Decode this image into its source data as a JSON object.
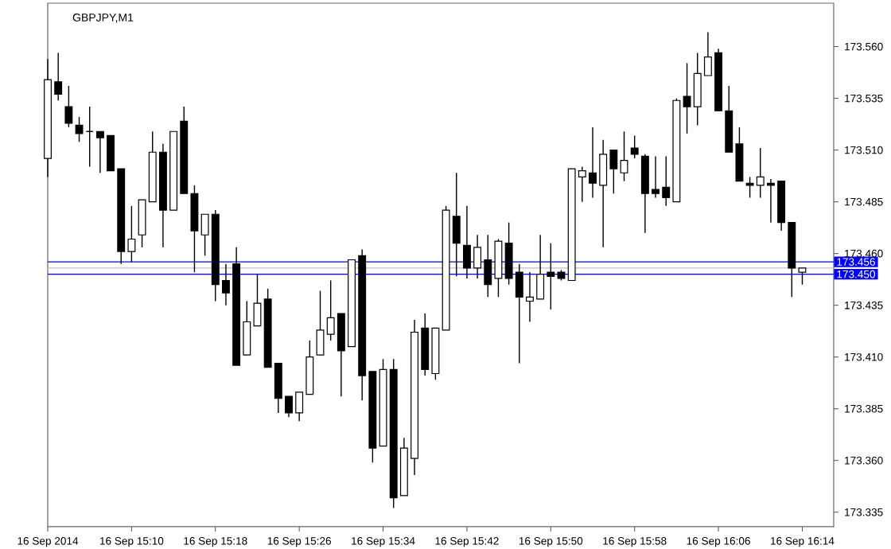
{
  "chart_data": {
    "type": "candlestick",
    "title": "GBPJPY,M1",
    "x": [
      "2014-09-16T15:02",
      "2014-09-16T15:03",
      "2014-09-16T15:04",
      "2014-09-16T15:05",
      "2014-09-16T15:06",
      "2014-09-16T15:07",
      "2014-09-16T15:08",
      "2014-09-16T15:09",
      "2014-09-16T15:10",
      "2014-09-16T15:11",
      "2014-09-16T15:12",
      "2014-09-16T15:13",
      "2014-09-16T15:14",
      "2014-09-16T15:15",
      "2014-09-16T15:16",
      "2014-09-16T15:17",
      "2014-09-16T15:18",
      "2014-09-16T15:19",
      "2014-09-16T15:20",
      "2014-09-16T15:21",
      "2014-09-16T15:22",
      "2014-09-16T15:23",
      "2014-09-16T15:24",
      "2014-09-16T15:25",
      "2014-09-16T15:26",
      "2014-09-16T15:27",
      "2014-09-16T15:28",
      "2014-09-16T15:29",
      "2014-09-16T15:30",
      "2014-09-16T15:31",
      "2014-09-16T15:32",
      "2014-09-16T15:33",
      "2014-09-16T15:34",
      "2014-09-16T15:35",
      "2014-09-16T15:36",
      "2014-09-16T15:37",
      "2014-09-16T15:38",
      "2014-09-16T15:39",
      "2014-09-16T15:40",
      "2014-09-16T15:41",
      "2014-09-16T15:42",
      "2014-09-16T15:43",
      "2014-09-16T15:44",
      "2014-09-16T15:45",
      "2014-09-16T15:46",
      "2014-09-16T15:47",
      "2014-09-16T15:48",
      "2014-09-16T15:49",
      "2014-09-16T15:50",
      "2014-09-16T15:51",
      "2014-09-16T15:52",
      "2014-09-16T15:53",
      "2014-09-16T15:54",
      "2014-09-16T15:55",
      "2014-09-16T15:56",
      "2014-09-16T15:57",
      "2014-09-16T15:58",
      "2014-09-16T15:59",
      "2014-09-16T16:00",
      "2014-09-16T16:01",
      "2014-09-16T16:02",
      "2014-09-16T16:03",
      "2014-09-16T16:04",
      "2014-09-16T16:05",
      "2014-09-16T16:06",
      "2014-09-16T16:07",
      "2014-09-16T16:08",
      "2014-09-16T16:09",
      "2014-09-16T16:10",
      "2014-09-16T16:11",
      "2014-09-16T16:12",
      "2014-09-16T16:13",
      "2014-09-16T16:14"
    ],
    "xlim": [
      "2014-09-16T15:02",
      "2014-09-16T16:17"
    ],
    "xticks": [
      {
        "value": "2014-09-16T15:02",
        "label": "16 Sep 2014"
      },
      {
        "value": "2014-09-16T15:10",
        "label": "16 Sep 15:10"
      },
      {
        "value": "2014-09-16T15:18",
        "label": "16 Sep 15:18"
      },
      {
        "value": "2014-09-16T15:26",
        "label": "16 Sep 15:26"
      },
      {
        "value": "2014-09-16T15:34",
        "label": "16 Sep 15:34"
      },
      {
        "value": "2014-09-16T15:42",
        "label": "16 Sep 15:42"
      },
      {
        "value": "2014-09-16T15:50",
        "label": "16 Sep 15:50"
      },
      {
        "value": "2014-09-16T15:58",
        "label": "16 Sep 15:58"
      },
      {
        "value": "2014-09-16T16:06",
        "label": "16 Sep 16:06"
      },
      {
        "value": "2014-09-16T16:14",
        "label": "16 Sep 16:14"
      }
    ],
    "ohlc": [
      [
        173.506,
        173.554,
        173.497,
        173.544
      ],
      [
        173.543,
        173.557,
        173.534,
        173.537
      ],
      [
        173.531,
        173.541,
        173.521,
        173.523
      ],
      [
        173.522,
        173.526,
        173.514,
        173.518
      ],
      [
        173.519,
        173.531,
        173.502,
        173.519
      ],
      [
        173.519,
        173.519,
        173.499,
        173.516
      ],
      [
        173.517,
        173.517,
        173.5,
        173.5
      ],
      [
        173.501,
        173.501,
        173.455,
        173.461
      ],
      [
        173.461,
        173.483,
        173.456,
        173.467
      ],
      [
        173.469,
        173.486,
        173.463,
        173.486
      ],
      [
        173.485,
        173.519,
        173.485,
        173.509
      ],
      [
        173.509,
        173.513,
        173.463,
        173.481
      ],
      [
        173.481,
        173.519,
        173.481,
        173.519
      ],
      [
        173.524,
        173.531,
        173.489,
        173.489
      ],
      [
        173.489,
        173.493,
        173.451,
        173.471
      ],
      [
        173.469,
        173.479,
        173.459,
        173.479
      ],
      [
        173.479,
        173.481,
        173.437,
        173.445
      ],
      [
        173.447,
        173.455,
        173.435,
        173.441
      ],
      [
        173.455,
        173.463,
        173.406,
        173.406
      ],
      [
        173.411,
        173.437,
        173.411,
        173.427
      ],
      [
        173.425,
        173.45,
        173.425,
        173.436
      ],
      [
        173.438,
        173.443,
        173.405,
        173.405
      ],
      [
        173.407,
        173.407,
        173.383,
        173.39
      ],
      [
        173.391,
        173.391,
        173.381,
        173.383
      ],
      [
        173.383,
        173.393,
        173.379,
        173.393
      ],
      [
        173.392,
        173.418,
        173.392,
        173.41
      ],
      [
        173.411,
        173.442,
        173.411,
        173.423
      ],
      [
        173.421,
        173.447,
        173.418,
        173.429
      ],
      [
        173.431,
        173.431,
        173.391,
        173.413
      ],
      [
        173.415,
        173.457,
        173.415,
        173.457
      ],
      [
        173.459,
        173.462,
        173.389,
        173.401
      ],
      [
        173.403,
        173.403,
        173.359,
        173.366
      ],
      [
        173.367,
        173.409,
        173.367,
        173.404
      ],
      [
        173.404,
        173.409,
        173.337,
        173.342
      ],
      [
        173.343,
        173.371,
        173.343,
        173.366
      ],
      [
        173.361,
        173.428,
        173.353,
        173.422
      ],
      [
        173.424,
        173.431,
        173.401,
        173.404
      ],
      [
        173.402,
        173.424,
        173.399,
        173.424
      ],
      [
        173.423,
        173.483,
        173.423,
        173.481
      ],
      [
        173.478,
        173.499,
        173.449,
        173.465
      ],
      [
        173.464,
        173.483,
        173.448,
        173.453
      ],
      [
        173.453,
        173.469,
        173.448,
        173.463
      ],
      [
        173.457,
        173.469,
        173.439,
        173.445
      ],
      [
        173.448,
        173.467,
        173.439,
        173.466
      ],
      [
        173.465,
        173.475,
        173.445,
        173.448
      ],
      [
        173.451,
        173.455,
        173.407,
        173.439
      ],
      [
        173.437,
        173.451,
        173.427,
        173.439
      ],
      [
        173.438,
        173.469,
        173.438,
        173.45
      ],
      [
        173.451,
        173.465,
        173.433,
        173.449
      ],
      [
        173.451,
        173.452,
        173.447,
        173.448
      ],
      [
        173.447,
        173.501,
        173.447,
        173.501
      ],
      [
        173.497,
        173.502,
        173.485,
        173.5
      ],
      [
        173.499,
        173.521,
        173.487,
        173.494
      ],
      [
        173.493,
        173.515,
        173.463,
        173.508
      ],
      [
        173.51,
        173.51,
        173.489,
        173.501
      ],
      [
        173.499,
        173.519,
        173.495,
        173.505
      ],
      [
        173.511,
        173.517,
        173.506,
        173.508
      ],
      [
        173.507,
        173.508,
        173.47,
        173.489
      ],
      [
        173.491,
        173.507,
        173.487,
        173.489
      ],
      [
        173.492,
        173.507,
        173.483,
        173.487
      ],
      [
        173.485,
        173.535,
        173.485,
        173.534
      ],
      [
        173.536,
        173.552,
        173.518,
        173.531
      ],
      [
        173.531,
        173.557,
        173.522,
        173.547
      ],
      [
        173.546,
        173.567,
        173.546,
        173.555
      ],
      [
        173.557,
        173.559,
        173.529,
        173.529
      ],
      [
        173.529,
        173.541,
        173.509,
        173.509
      ],
      [
        173.513,
        173.521,
        173.495,
        173.495
      ],
      [
        173.494,
        173.497,
        173.487,
        173.493
      ],
      [
        173.493,
        173.511,
        173.487,
        173.497
      ],
      [
        173.494,
        173.496,
        173.475,
        173.493
      ],
      [
        173.495,
        173.495,
        173.471,
        173.475
      ],
      [
        173.475,
        173.475,
        173.439,
        173.453
      ],
      [
        173.451,
        173.453,
        173.445,
        173.453
      ]
    ],
    "ylim": [
      173.328,
      173.581
    ],
    "yticks": [
      {
        "value": 173.335,
        "label": "173.335"
      },
      {
        "value": 173.36,
        "label": "173.360"
      },
      {
        "value": 173.385,
        "label": "173.385"
      },
      {
        "value": 173.41,
        "label": "173.410"
      },
      {
        "value": 173.435,
        "label": "173.435"
      },
      {
        "value": 173.46,
        "label": "173.460"
      },
      {
        "value": 173.485,
        "label": "173.485"
      },
      {
        "value": 173.51,
        "label": "173.510"
      },
      {
        "value": 173.535,
        "label": "173.535"
      },
      {
        "value": 173.56,
        "label": "173.560"
      }
    ],
    "ref_lines": [
      {
        "axis": "y",
        "value": 173.453,
        "color": "#c0c0c0"
      },
      {
        "axis": "y",
        "value": 173.456,
        "label": "173.456",
        "color": "#0000ff"
      },
      {
        "axis": "y",
        "value": 173.45,
        "label": "173.450",
        "color": "#0000ff"
      }
    ],
    "grid": false
  }
}
